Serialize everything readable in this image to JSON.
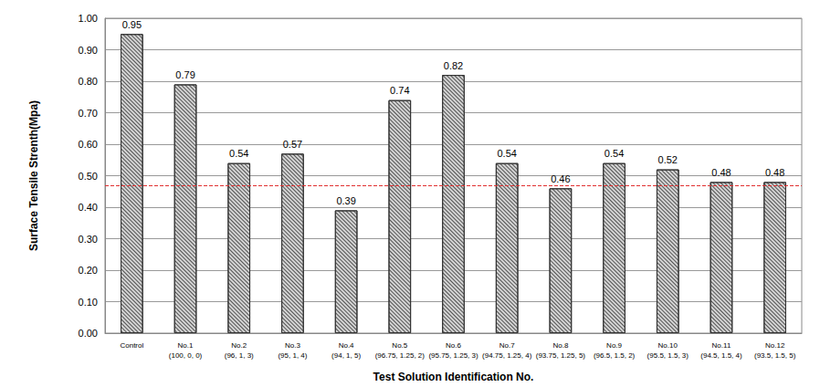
{
  "chart_data": {
    "type": "bar",
    "x_label": "Test Solution Identification No.",
    "y_label": "Surface Tensile Strenth(Mpa)",
    "categories": [
      "Control",
      "No.1\n(100, 0, 0)",
      "No.2\n(96, 1, 3)",
      "No.3\n(95, 1, 4)",
      "No.4\n(94, 1, 5)",
      "No.5\n(96.75, 1.25, 2)",
      "No.6\n(95.75, 1.25, 3)",
      "No.7\n(94.75, 1.25, 4)",
      "No.8\n(93.75, 1.25, 5)",
      "No.9\n(96.5, 1.5, 2)",
      "No.10\n(95.5, 1.5, 3)",
      "No.11\n(94.5, 1.5, 4)",
      "No.12\n(93.5, 1.5, 5)"
    ],
    "values": [
      0.95,
      0.79,
      0.54,
      0.57,
      0.39,
      0.74,
      0.82,
      0.54,
      0.46,
      0.54,
      0.52,
      0.48,
      0.48
    ],
    "color": "#d4d4d4",
    "ylim": [
      0,
      1
    ],
    "yticks": [
      {
        "value": 0,
        "label": "0.00"
      },
      {
        "value": 0.1,
        "label": "0.10"
      },
      {
        "value": 0.2,
        "label": "0.20"
      },
      {
        "value": 0.3,
        "label": "0.30"
      },
      {
        "value": 0.4,
        "label": "0.40"
      },
      {
        "value": 0.5,
        "label": "0.50"
      },
      {
        "value": 0.6,
        "label": "0.60"
      },
      {
        "value": 0.7,
        "label": "0.70"
      },
      {
        "value": 0.8,
        "label": "0.80"
      },
      {
        "value": 0.9,
        "label": "0.90"
      },
      {
        "value": 1,
        "label": "1.00"
      }
    ],
    "grid": true,
    "data_labels": true,
    "reference_line": {
      "value": 0.47,
      "color": "#e03030",
      "line_style": "dashed"
    }
  }
}
